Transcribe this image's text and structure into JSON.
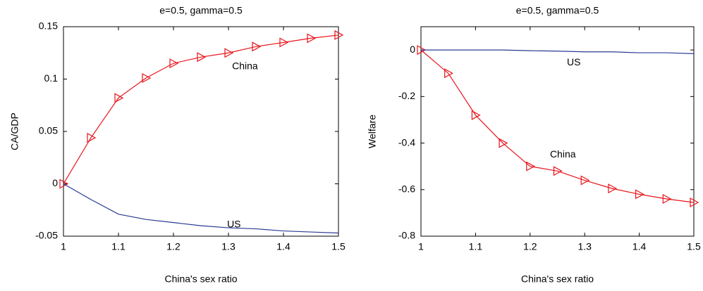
{
  "chart_data": [
    {
      "type": "line",
      "title": "e=0.5, gamma=0.5",
      "xlabel": "China's sex ratio",
      "ylabel": "CA/GDP",
      "x": [
        1,
        1.05,
        1.1,
        1.15,
        1.2,
        1.25,
        1.3,
        1.35,
        1.4,
        1.45,
        1.5
      ],
      "xlim": [
        1,
        1.5
      ],
      "xticks": [
        1,
        1.1,
        1.2,
        1.3,
        1.4,
        1.5
      ],
      "ylim": [
        -0.05,
        0.15
      ],
      "yticks": [
        -0.05,
        0,
        0.05,
        0.1,
        0.15
      ],
      "series": [
        {
          "name": "China",
          "color": "#e8141b",
          "marker": "triangle-right",
          "values": [
            0,
            0.044,
            0.082,
            0.101,
            0.115,
            0.121,
            0.125,
            0.131,
            0.135,
            0.139,
            0.142
          ]
        },
        {
          "name": "US",
          "color": "#2b3a94",
          "values": [
            0,
            -0.015,
            -0.029,
            -0.034,
            -0.037,
            -0.04,
            -0.042,
            -0.043,
            -0.045,
            -0.046,
            -0.047
          ]
        }
      ],
      "annotations": [
        {
          "text": "China",
          "x": 1.33,
          "y": 0.112
        },
        {
          "text": "US",
          "x": 1.31,
          "y": -0.039
        }
      ]
    },
    {
      "type": "line",
      "title": "e=0.5, gamma=0.5",
      "xlabel": "China's sex ratio",
      "ylabel": "Welfare",
      "x": [
        1,
        1.05,
        1.1,
        1.15,
        1.2,
        1.25,
        1.3,
        1.35,
        1.4,
        1.45,
        1.5
      ],
      "xlim": [
        1,
        1.5
      ],
      "xticks": [
        1,
        1.1,
        1.2,
        1.3,
        1.4,
        1.5
      ],
      "ylim": [
        -0.8,
        0.1
      ],
      "yticks": [
        -0.8,
        -0.6,
        -0.4,
        -0.2,
        0
      ],
      "series": [
        {
          "name": "China",
          "color": "#e8141b",
          "marker": "triangle-right",
          "values": [
            0,
            -0.1,
            -0.28,
            -0.4,
            -0.5,
            -0.52,
            -0.56,
            -0.595,
            -0.62,
            -0.64,
            -0.655
          ]
        },
        {
          "name": "US",
          "color": "#2b3a94",
          "values": [
            0,
            0,
            0,
            0,
            -0.003,
            -0.005,
            -0.008,
            -0.008,
            -0.012,
            -0.012,
            -0.016
          ]
        }
      ],
      "annotations": [
        {
          "text": "China",
          "x": 1.26,
          "y": -0.45
        },
        {
          "text": "US",
          "x": 1.28,
          "y": -0.055
        }
      ]
    }
  ]
}
